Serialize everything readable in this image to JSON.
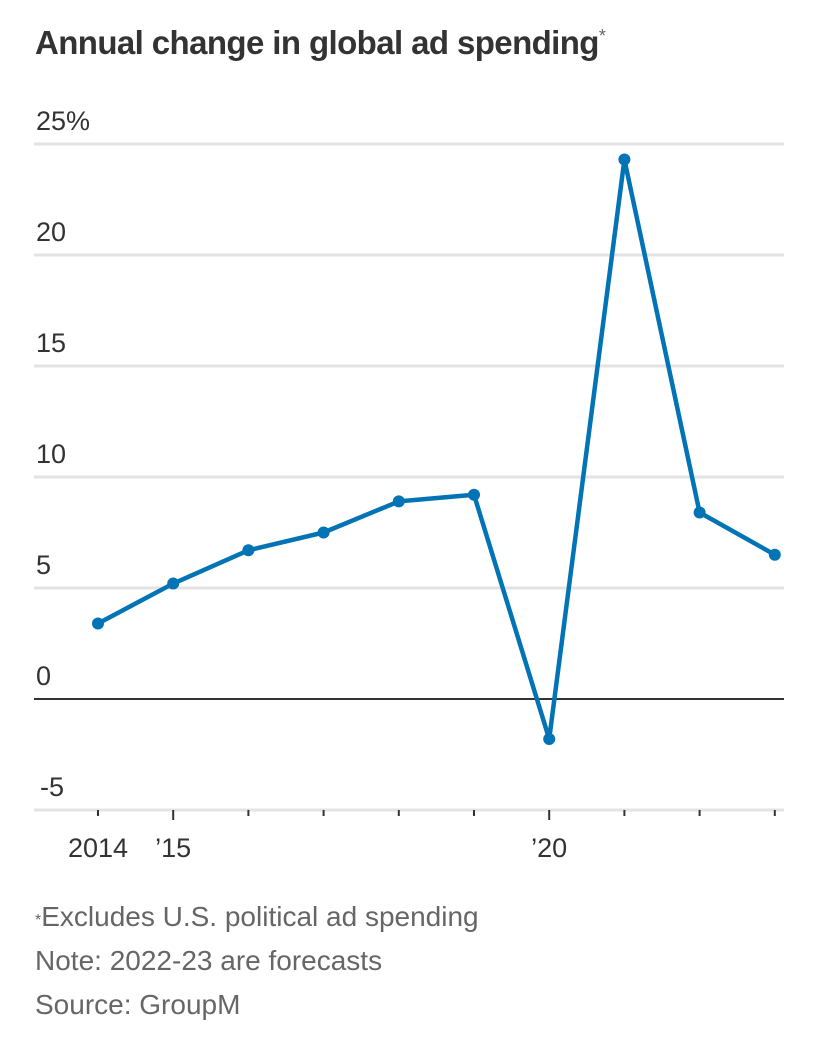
{
  "chart_data": {
    "type": "line",
    "title": "Annual change in global ad spending",
    "title_marker": "*",
    "xlabel": "",
    "ylabel": "",
    "x": [
      2014,
      2015,
      2016,
      2017,
      2018,
      2019,
      2020,
      2021,
      2022,
      2023
    ],
    "x_tick_labels": [
      {
        "x": 2014,
        "label": "2014"
      },
      {
        "x": 2015,
        "label": "’15"
      },
      {
        "x": 2020,
        "label": "’20"
      }
    ],
    "series": [
      {
        "name": "Annual change in global ad spending",
        "color": "#0274b6",
        "values": [
          3.4,
          5.2,
          6.7,
          7.5,
          8.9,
          9.2,
          -1.8,
          24.3,
          8.4,
          6.5
        ]
      }
    ],
    "ylim": [
      -5,
      25
    ],
    "y_ticks": [
      25,
      20,
      15,
      10,
      5,
      0,
      -5
    ],
    "y_tick_labels": [
      "25%",
      "20",
      "15",
      "10",
      "5",
      "0",
      "-5"
    ],
    "grid": true,
    "legend": "none",
    "annotations": []
  },
  "notes": {
    "footnote_marker": "*",
    "footnote": "Excludes U.S. political ad spending",
    "note": "Note: 2022-23 are forecasts",
    "source": "Source: GroupM"
  }
}
